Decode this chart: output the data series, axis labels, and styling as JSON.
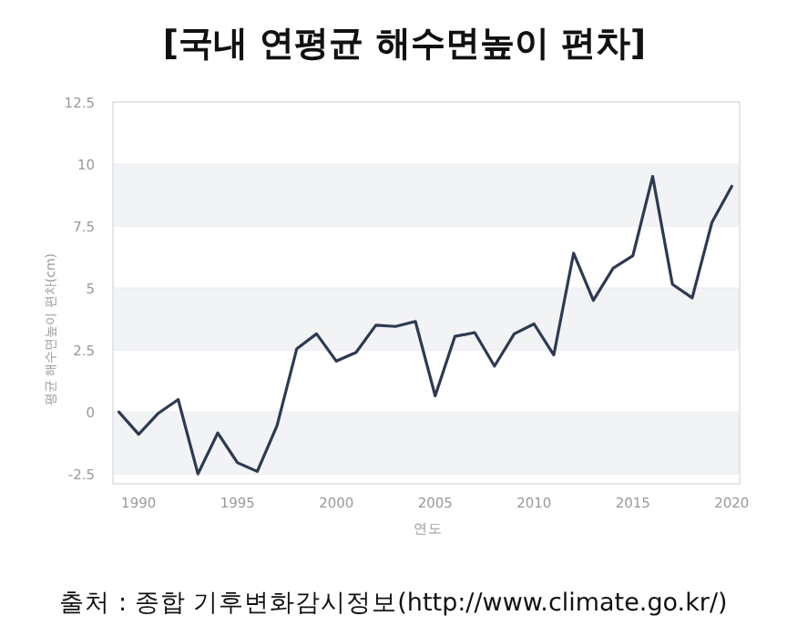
{
  "chart_data": {
    "type": "line",
    "title": "[국내  연평균  해수면높이  편차]",
    "xlabel": "연도",
    "ylabel": "평균 해수면높이 편차(cm)",
    "x": [
      1989,
      1990,
      1991,
      1992,
      1993,
      1994,
      1995,
      1996,
      1997,
      1998,
      1999,
      2000,
      2001,
      2002,
      2003,
      2004,
      2005,
      2006,
      2007,
      2008,
      2009,
      2010,
      2011,
      2012,
      2013,
      2014,
      2015,
      2016,
      2017,
      2018,
      2019,
      2020
    ],
    "series": [
      {
        "color": "#2e3a52",
        "values": [
          0,
          -0.9,
          -0.05,
          0.5,
          -2.5,
          -0.85,
          -2.05,
          -2.4,
          -0.55,
          2.55,
          3.15,
          2.05,
          2.4,
          3.5,
          3.45,
          3.65,
          0.65,
          3.05,
          3.2,
          1.85,
          3.15,
          3.55,
          2.3,
          6.4,
          4.5,
          5.8,
          6.3,
          9.5,
          5.15,
          4.6,
          7.65,
          9.1
        ]
      }
    ],
    "xlim": [
      1988.7,
      2020.4
    ],
    "xticks": [
      1990,
      1995,
      2000,
      2005,
      2010,
      2015,
      2020
    ],
    "ylim": [
      -2.9,
      12.5
    ],
    "yticks": [
      -2.5,
      0,
      2.5,
      5,
      7.5,
      10,
      12.5
    ],
    "grid": "y",
    "marker": "none",
    "line_style": "solid",
    "annotations": [
      "출처 : 종합  기후변화감시정보(http://www.climate.go.kr/)"
    ]
  }
}
